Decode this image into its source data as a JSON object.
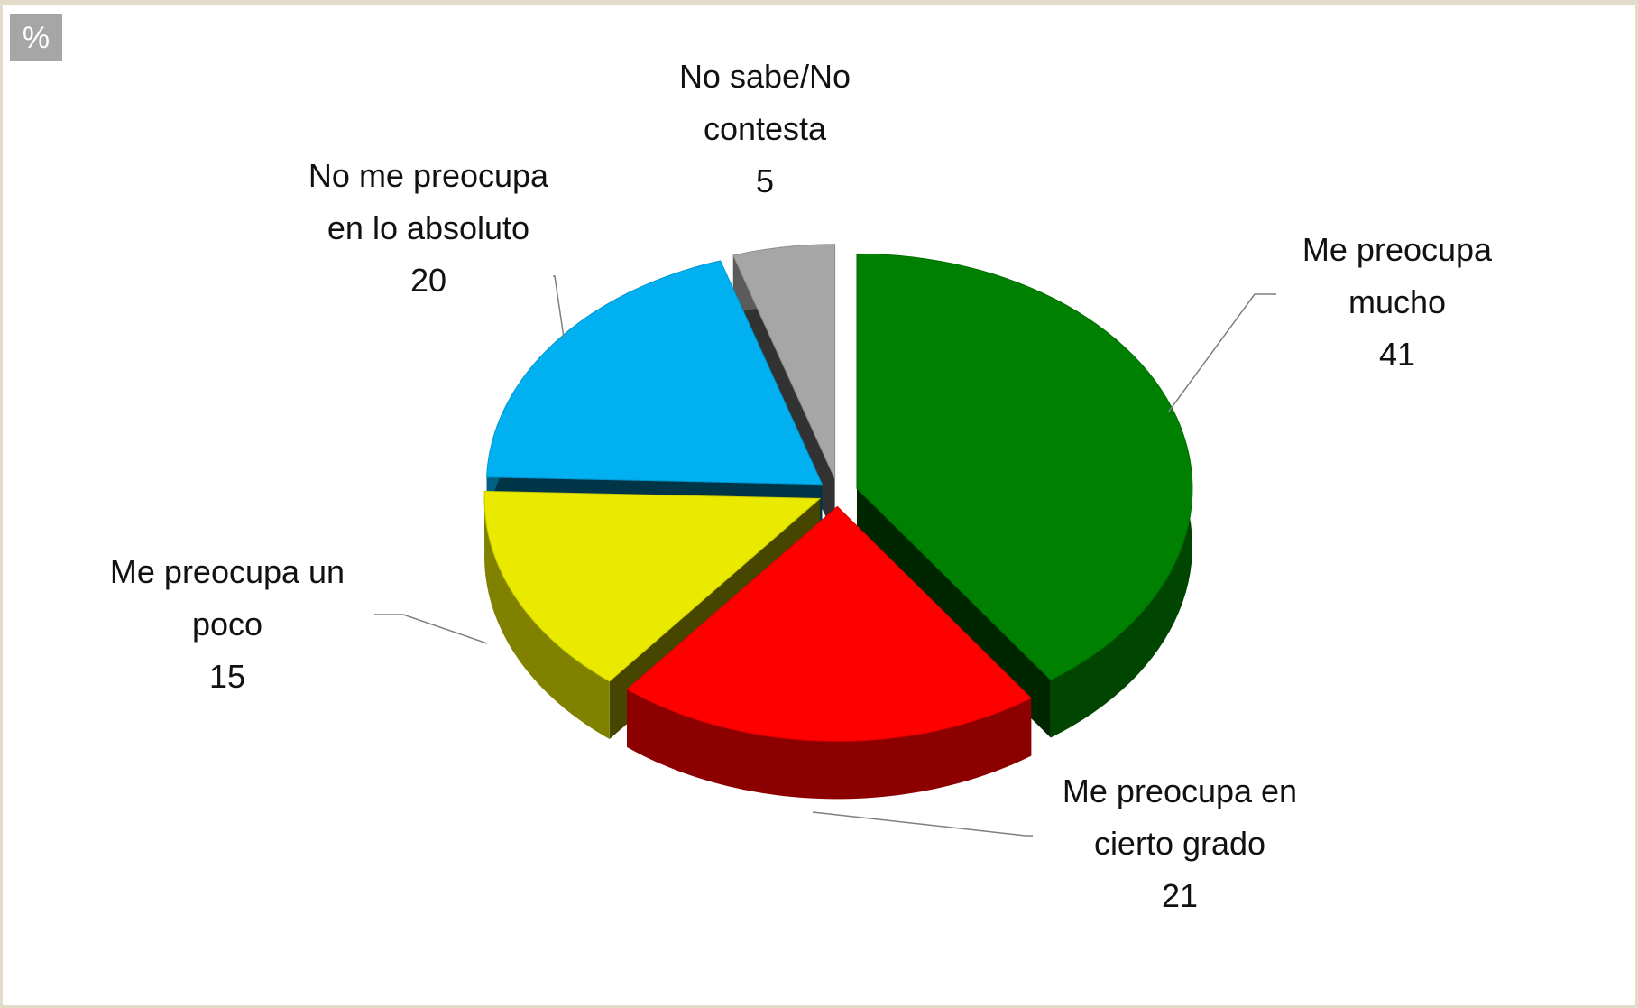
{
  "chart_data": {
    "type": "pie",
    "unit": "%",
    "categories": [
      "Me preocupa mucho",
      "Me preocupa en cierto grado",
      "Me preocupa un poco",
      "No me preocupa en lo absoluto",
      "No sabe/No contesta"
    ],
    "values": [
      41,
      21,
      15,
      20,
      5
    ],
    "colors": [
      "#008000",
      "#ff0000",
      "#eaea00",
      "#00b0f0",
      "#a6a6a6"
    ]
  }
}
